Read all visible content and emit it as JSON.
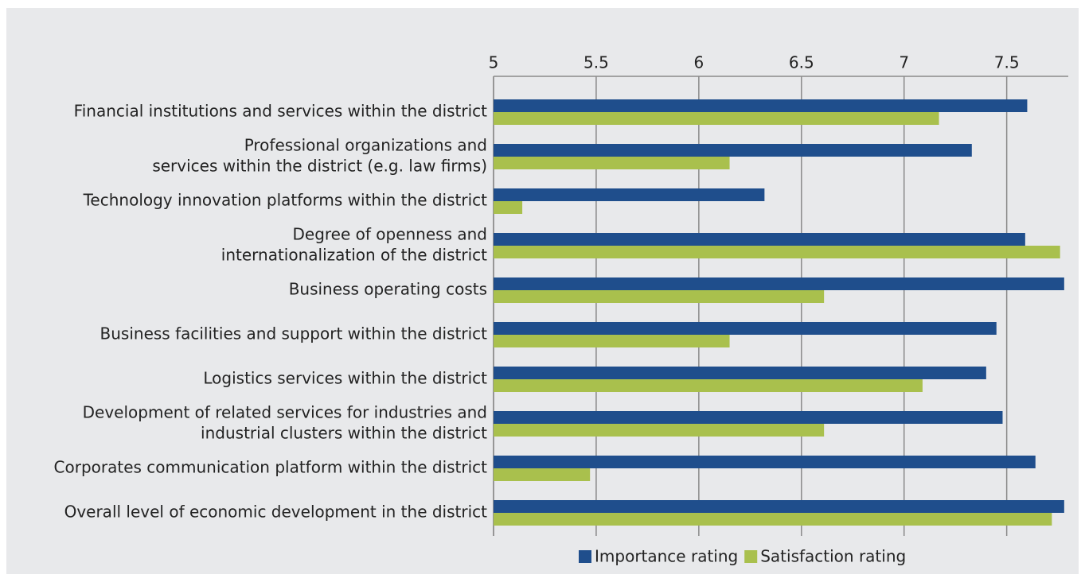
{
  "chart_data": {
    "type": "bar",
    "orientation": "horizontal",
    "categories": [
      [
        "Financial institutions and services within the district"
      ],
      [
        "Professional organizations and",
        "services within the district (e.g. law firms)"
      ],
      [
        "Technology innovation platforms within the district"
      ],
      [
        "Degree of openness and",
        "internationalization of the district"
      ],
      [
        "Business operating costs"
      ],
      [
        "Business facilities and support within the district"
      ],
      [
        "Logistics services within the district"
      ],
      [
        "Development of related services for industries and",
        "industrial clusters within the district"
      ],
      [
        "Corporates communication platform within the district"
      ],
      [
        "Overall level of economic development in the district"
      ]
    ],
    "series": [
      {
        "name": "Importance rating",
        "color": "#1f4e8c",
        "values": [
          7.6,
          7.33,
          6.32,
          7.59,
          7.78,
          7.45,
          7.4,
          7.48,
          7.64,
          7.78
        ]
      },
      {
        "name": "Satisfaction rating",
        "color": "#a9c04d",
        "values": [
          7.17,
          6.15,
          5.14,
          7.76,
          6.61,
          6.15,
          7.09,
          6.61,
          5.47,
          7.72
        ]
      }
    ],
    "xlim": [
      5,
      7.8
    ],
    "xticks": [
      5,
      5.5,
      6,
      6.5,
      7,
      7.5
    ],
    "grid": true,
    "legend": "bottom"
  }
}
